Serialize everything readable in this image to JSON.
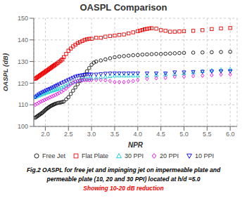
{
  "chart_data": {
    "type": "scatter",
    "title": "OASPL Comparison",
    "x_label": "NPR",
    "y_label": "OASPL (dB)",
    "xlim": [
      1.75,
      6.15
    ],
    "ylim": [
      100,
      150
    ],
    "xticks": [
      {
        "value": 2,
        "label": "2.0"
      },
      2.5,
      {
        "value": 3,
        "label": "3.0"
      },
      3.5,
      {
        "value": 4,
        "label": "4.0"
      },
      4.5,
      {
        "value": 5,
        "label": "5.0"
      },
      5.5,
      {
        "value": 6,
        "label": "6.0"
      }
    ],
    "yticks": [
      100,
      110,
      120,
      130,
      140,
      150
    ],
    "grid": true,
    "annotations": [
      {
        "text": "Fig.2 OASPL for free jet and impinging jet on impermeable plate and"
      },
      {
        "text": "permeable plate (10, 20  and 30 PPI) located at h/d =5.0"
      },
      {
        "text": "Showing 10-20 dB reduction",
        "color": "#FF0000"
      }
    ],
    "series": [
      {
        "name": "Free Jet",
        "color": "#111111",
        "marker": "circle",
        "x": [
          1.78,
          1.8,
          1.82,
          1.84,
          1.86,
          1.88,
          1.9,
          1.92,
          1.94,
          1.96,
          1.98,
          2.0,
          2.02,
          2.04,
          2.06,
          2.08,
          2.1,
          2.12,
          2.14,
          2.16,
          2.18,
          2.2,
          2.22,
          2.25,
          2.28,
          2.31,
          2.34,
          2.37,
          2.4,
          2.45,
          2.5,
          2.55,
          2.6,
          2.65,
          2.7,
          2.75,
          2.8,
          2.85,
          2.9,
          2.95,
          3.0,
          3.05,
          3.1,
          3.2,
          3.3,
          3.4,
          3.5,
          3.6,
          3.7,
          3.8,
          3.9,
          4.0,
          4.1,
          4.2,
          4.3,
          4.4,
          4.5,
          4.6,
          4.7,
          4.8,
          4.9,
          5.0,
          5.2,
          5.4,
          5.6,
          5.8,
          6.0
        ],
        "values": [
          104.0,
          104.3,
          104.6,
          104.9,
          105.2,
          105.5,
          105.8,
          106.1,
          106.4,
          106.8,
          107.2,
          107.6,
          108.0,
          108.3,
          108.6,
          108.9,
          109.2,
          109.5,
          109.7,
          109.9,
          110.1,
          110.3,
          110.5,
          110.7,
          110.9,
          111.0,
          111.1,
          111.3,
          111.5,
          112.5,
          113.5,
          115.0,
          116.5,
          118.0,
          119.5,
          121.0,
          122.5,
          124.0,
          125.5,
          127.0,
          128.5,
          129.5,
          130.0,
          130.5,
          131.0,
          131.5,
          132.0,
          132.3,
          132.5,
          132.7,
          132.9,
          133.0,
          133.2,
          133.3,
          133.4,
          133.5,
          133.5,
          133.6,
          133.7,
          133.8,
          133.9,
          134.0,
          134.1,
          134.2,
          134.3,
          134.4,
          134.5
        ]
      },
      {
        "name": "Flat Plate",
        "color": "#EE0000",
        "marker": "square",
        "x": [
          1.78,
          1.8,
          1.82,
          1.84,
          1.86,
          1.88,
          1.9,
          1.92,
          1.94,
          1.96,
          1.98,
          2.0,
          2.02,
          2.04,
          2.06,
          2.08,
          2.1,
          2.12,
          2.14,
          2.16,
          2.18,
          2.2,
          2.22,
          2.25,
          2.28,
          2.31,
          2.34,
          2.37,
          2.4,
          2.45,
          2.5,
          2.55,
          2.6,
          2.65,
          2.7,
          2.75,
          2.8,
          2.85,
          2.9,
          2.95,
          3.0,
          3.1,
          3.2,
          3.3,
          3.4,
          3.5,
          3.6,
          3.7,
          3.8,
          3.9,
          4.0,
          4.05,
          4.1,
          4.15,
          4.2,
          4.25,
          4.3,
          4.4,
          4.5,
          4.6,
          4.7,
          4.8,
          4.9,
          5.0,
          5.2,
          5.4,
          5.6,
          5.8,
          6.0
        ],
        "values": [
          122.0,
          122.3,
          122.6,
          122.9,
          123.2,
          123.5,
          123.8,
          124.1,
          124.4,
          124.7,
          125.0,
          125.3,
          125.6,
          125.9,
          126.2,
          126.5,
          126.8,
          127.1,
          127.4,
          127.7,
          128.0,
          128.3,
          128.6,
          129.0,
          129.5,
          130.0,
          130.5,
          131.0,
          132.0,
          133.5,
          135.0,
          136.0,
          137.0,
          137.8,
          138.5,
          139.0,
          139.5,
          140.0,
          140.3,
          140.5,
          140.5,
          141.0,
          141.0,
          141.5,
          141.8,
          142.0,
          142.3,
          142.5,
          143.0,
          143.5,
          144.0,
          144.3,
          144.6,
          144.9,
          145.1,
          145.3,
          145.4,
          145.2,
          144.5,
          144.2,
          143.8,
          143.8,
          143.9,
          144.0,
          144.2,
          144.5,
          145.0,
          145.3,
          145.5
        ]
      },
      {
        "name": "30 PPI",
        "color": "#00CCCC",
        "marker": "triangle",
        "x": [
          1.78,
          1.82,
          1.86,
          1.9,
          1.94,
          1.98,
          2.02,
          2.06,
          2.1,
          2.14,
          2.18,
          2.22,
          2.26,
          2.3,
          2.35,
          2.4,
          2.45,
          2.5,
          2.55,
          2.6,
          2.65,
          2.7,
          2.75,
          2.8,
          2.85,
          2.9,
          2.95,
          3.0,
          3.1,
          3.2,
          3.3,
          3.4,
          3.5,
          3.6,
          3.7,
          3.8,
          3.9,
          4.0,
          4.2,
          4.4,
          4.6,
          4.8,
          5.0,
          5.2,
          5.4,
          5.6,
          5.8,
          6.0
        ],
        "values": [
          113.5,
          114.0,
          114.3,
          114.6,
          115.0,
          115.3,
          115.6,
          115.9,
          116.2,
          116.5,
          116.8,
          117.0,
          117.3,
          117.5,
          118.0,
          118.5,
          119.0,
          119.5,
          120.0,
          120.5,
          121.0,
          121.3,
          121.5,
          121.7,
          122.0,
          122.0,
          122.2,
          122.3,
          122.5,
          122.8,
          123.0,
          123.2,
          123.5,
          123.5,
          123.5,
          123.5,
          123.5,
          123.5,
          123.5,
          123.8,
          124.0,
          124.2,
          124.5,
          125.0,
          125.5,
          126.0,
          126.3,
          126.5
        ]
      },
      {
        "name": "20 PPI",
        "color": "#EE00EE",
        "marker": "diamond",
        "x": [
          1.78,
          1.82,
          1.86,
          1.9,
          1.94,
          1.98,
          2.02,
          2.06,
          2.1,
          2.14,
          2.18,
          2.22,
          2.26,
          2.3,
          2.35,
          2.4,
          2.45,
          2.5,
          2.55,
          2.6,
          2.65,
          2.7,
          2.75,
          2.8,
          2.85,
          2.9,
          2.95,
          3.0,
          3.1,
          3.2,
          3.3,
          3.4,
          3.5,
          3.6,
          3.7,
          3.8,
          3.9,
          4.0,
          4.2,
          4.4,
          4.6,
          4.8,
          5.0,
          5.2,
          5.4,
          5.6,
          5.8,
          6.0
        ],
        "values": [
          110.0,
          110.5,
          111.0,
          111.4,
          111.8,
          112.2,
          112.6,
          113.0,
          113.4,
          113.8,
          114.2,
          114.6,
          115.0,
          115.5,
          116.0,
          116.8,
          117.5,
          118.5,
          119.5,
          120.2,
          120.8,
          121.0,
          121.2,
          121.3,
          121.4,
          121.4,
          121.4,
          121.5,
          121.5,
          121.5,
          121.3,
          121.0,
          120.5,
          120.5,
          120.5,
          120.8,
          121.0,
          121.5,
          122.0,
          122.3,
          122.5,
          123.0,
          123.0,
          123.3,
          123.5,
          123.7,
          124.0,
          124.0
        ]
      },
      {
        "name": "10 PPI",
        "color": "#0000EE",
        "marker": "triangle_down",
        "x": [
          1.78,
          1.82,
          1.86,
          1.9,
          1.94,
          1.98,
          2.02,
          2.06,
          2.1,
          2.14,
          2.18,
          2.22,
          2.26,
          2.3,
          2.35,
          2.4,
          2.45,
          2.5,
          2.55,
          2.6,
          2.65,
          2.7,
          2.75,
          2.8,
          2.85,
          2.9,
          2.95,
          3.0,
          3.1,
          3.2,
          3.3,
          3.4,
          3.5,
          3.6,
          3.7,
          3.8,
          3.9,
          4.0,
          4.2,
          4.4,
          4.6,
          4.8,
          5.0,
          5.2,
          5.4,
          5.6,
          5.8,
          6.0
        ],
        "values": [
          113.5,
          114.2,
          114.8,
          115.3,
          115.8,
          116.2,
          116.6,
          117.0,
          117.4,
          117.8,
          118.2,
          118.6,
          119.0,
          119.5,
          120.0,
          120.5,
          121.0,
          121.5,
          122.0,
          122.5,
          123.0,
          123.3,
          123.5,
          123.7,
          123.8,
          124.0,
          124.0,
          124.0,
          124.0,
          124.2,
          124.4,
          124.5,
          124.5,
          124.5,
          124.5,
          124.5,
          124.5,
          124.5,
          124.5,
          124.5,
          124.5,
          125.0,
          125.0,
          125.2,
          125.3,
          125.4,
          125.5,
          125.5
        ]
      }
    ]
  }
}
